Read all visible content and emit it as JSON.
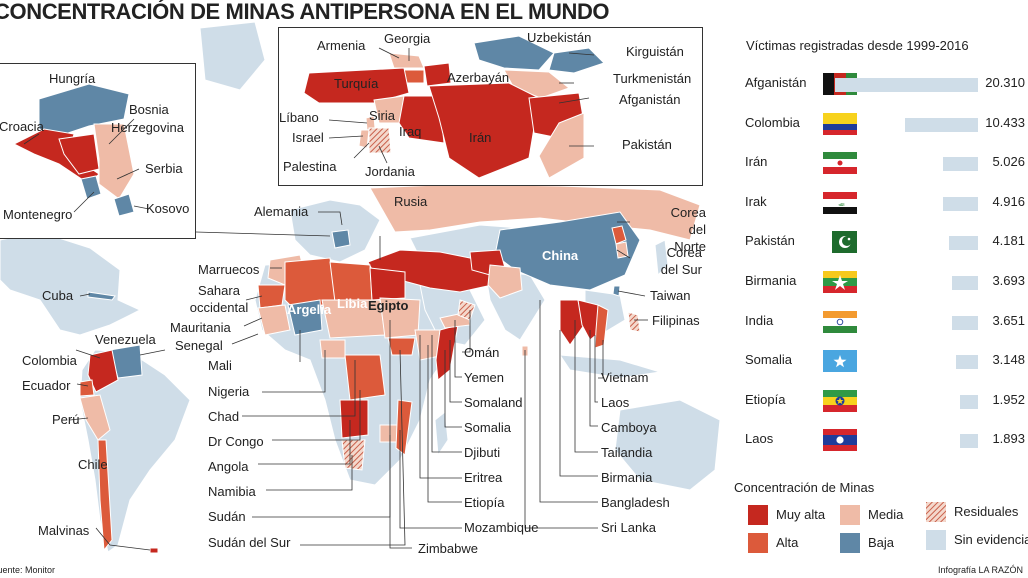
{
  "title": "CONCENTRACIÓN DE MINAS ANTIPERSONA EN EL MUNDO",
  "colors": {
    "muy_alta": "#c5281f",
    "alta": "#dc5a3b",
    "media": "#efbba7",
    "baja": "#5f87a6",
    "sin_evidencia": "#cfdde8",
    "residuales": "#c9604b"
  },
  "map_labels": {
    "alemania": "Alemania",
    "rusia": "Rusia",
    "china": "China",
    "corea_norte": "Corea del Norte",
    "corea_sur": "Corea del Sur",
    "taiwan": "Taiwan",
    "filipinas": "Filipinas",
    "marruecos": "Marruecos",
    "sahara": "Sahara occidental",
    "mauritania": "Mauritania",
    "senegal": "Senegal",
    "mali": "Mali",
    "nigeria": "Nigeria",
    "chad": "Chad",
    "drcongo": "Dr Congo",
    "angola": "Angola",
    "namibia": "Namibia",
    "sudan": "Sudán",
    "sudan_sur": "Sudán del Sur",
    "zimbabwe": "Zimbabwe",
    "mozambique": "Mozambique",
    "etiopia": "Etiopía",
    "eritrea": "Eritrea",
    "djibuti": "Djibuti",
    "somalia": "Somalia",
    "somaland": "Somaland",
    "yemen": "Yemen",
    "oman": "Omán",
    "argelia": "Argelia",
    "libia": "Libia",
    "egipto": "Egipto",
    "vietnam": "Vietnam",
    "laos": "Laos",
    "camboya": "Camboya",
    "tailandia": "Tailandia",
    "birmania": "Birmania",
    "bangladesh": "Bangladesh",
    "srilanka": "Sri Lanka",
    "cuba": "Cuba",
    "venezuela": "Venezuela",
    "colombia": "Colombia",
    "ecuador": "Ecuador",
    "peru": "Perú",
    "chile": "Chile",
    "malvinas": "Malvinas"
  },
  "inset_balkans": {
    "hungria": "Hungría",
    "bosnia": "Bosnia",
    "herzegovina": "Herzegovina",
    "croacia": "Croacia",
    "serbia": "Serbia",
    "montenegro": "Montenegro",
    "kosovo": "Kosovo"
  },
  "inset_middle_east": {
    "armenia": "Armenia",
    "georgia": "Georgia",
    "uzbekistan": "Uzbekistán",
    "kirguistan": "Kirguistán",
    "turkmenistan": "Turkmenistán",
    "azerbayan": "Azerbayán",
    "turquia": "Turquía",
    "afganistan": "Afganistán",
    "libano": "Líbano",
    "siria": "Siria",
    "israel": "Israel",
    "iraq": "Iraq",
    "iran": "Irán",
    "pakistan": "Pakistán",
    "palestina": "Palestina",
    "jordania": "Jordania"
  },
  "victims": {
    "title": "Víctimas registradas desde 1999-2016",
    "max": 20310,
    "rows": [
      {
        "country": "Afganistán",
        "value": 20310,
        "label": "20.310",
        "flag": "afganistan-flag"
      },
      {
        "country": "Colombia",
        "value": 10433,
        "label": "10.433",
        "flag": "colombia-flag"
      },
      {
        "country": "Irán",
        "value": 5026,
        "label": "5.026",
        "flag": "iran-flag"
      },
      {
        "country": "Irak",
        "value": 4916,
        "label": "4.916",
        "flag": "irak-flag"
      },
      {
        "country": "Pakistán",
        "value": 4181,
        "label": "4.181",
        "flag": "pakistan-flag"
      },
      {
        "country": "Birmania",
        "value": 3693,
        "label": "3.693",
        "flag": "birmania-flag"
      },
      {
        "country": "India",
        "value": 3651,
        "label": "3.651",
        "flag": "india-flag"
      },
      {
        "country": "Somalia",
        "value": 3148,
        "label": "3.148",
        "flag": "somalia-flag"
      },
      {
        "country": "Etiopía",
        "value": 1952,
        "label": "1.952",
        "flag": "etiopia-flag"
      },
      {
        "country": "Laos",
        "value": 1893,
        "label": "1.893",
        "flag": "laos-flag"
      }
    ]
  },
  "legend": {
    "title": "Concentración de Minas",
    "muy_alta": "Muy alta",
    "alta": "Alta",
    "media": "Media",
    "baja": "Baja",
    "residuales": "Residuales",
    "sin_evidencia": "Sin evidencia"
  },
  "source": "Fuente: Monitor",
  "credit": "Infografía LA RAZÓN"
}
